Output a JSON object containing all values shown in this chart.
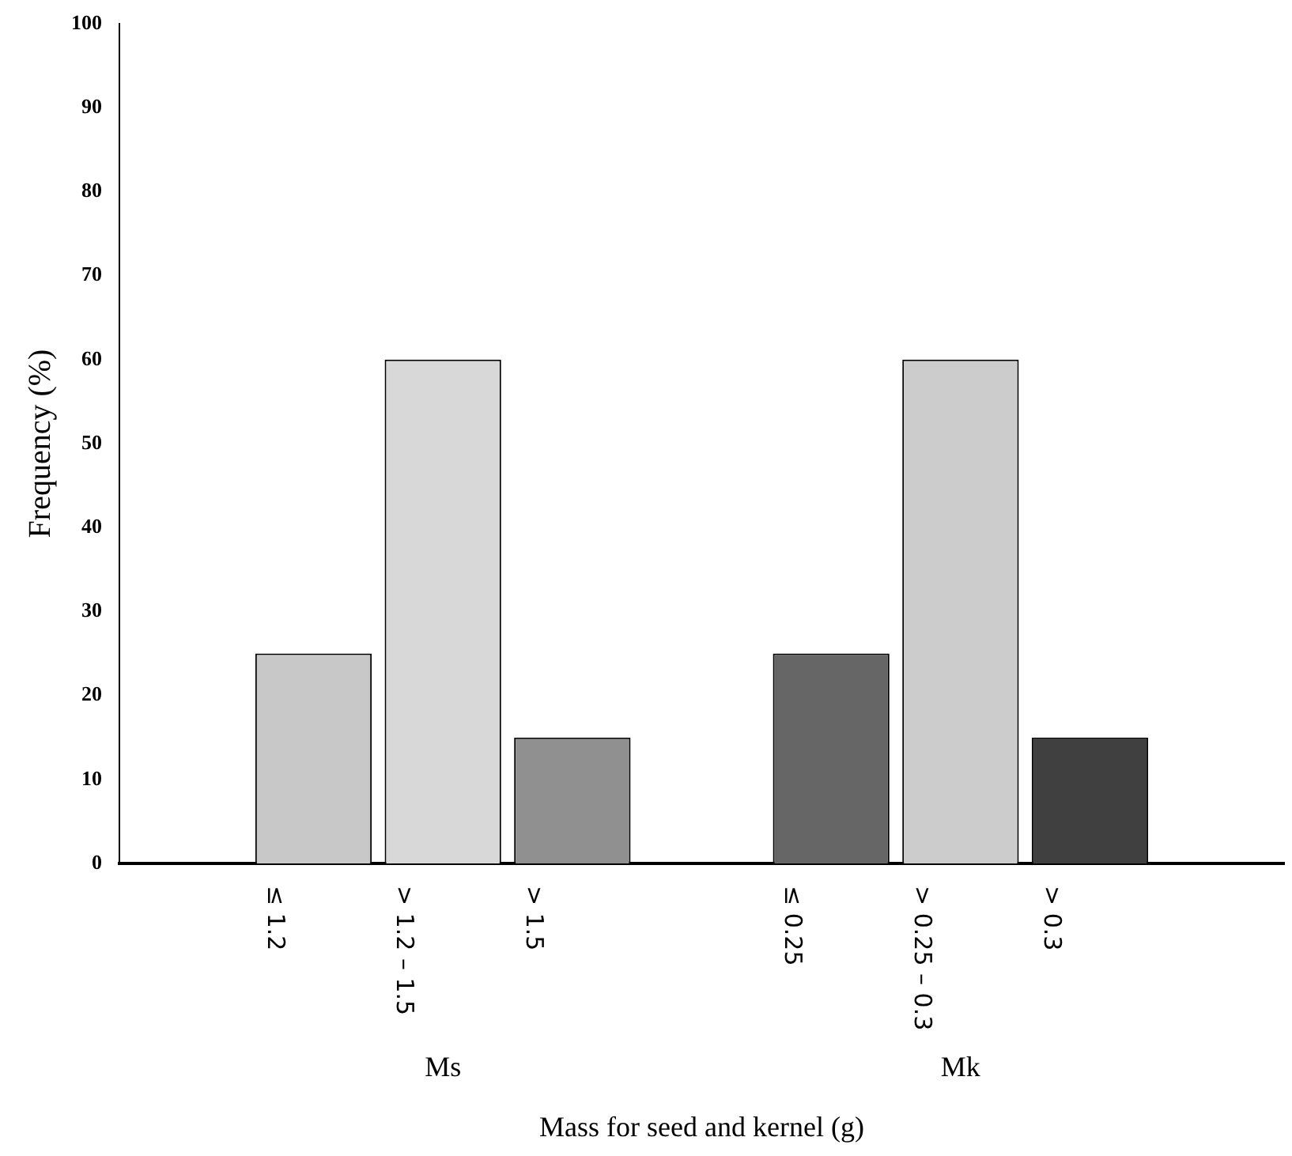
{
  "chart_data": {
    "type": "bar",
    "xlabel": "Mass for seed and kernel (g)",
    "ylabel": "Frequency (%)",
    "categories": [
      null,
      "≤ 1.2",
      "> 1.2 – 1.5",
      "> 1.5",
      null,
      "≤ 0.25",
      "> 0.25 – 0.3",
      "> 0.3",
      null
    ],
    "values": [
      null,
      25,
      60,
      15,
      null,
      25,
      60,
      15,
      null
    ],
    "colors": [
      "#ffffff",
      "#c8c8c8",
      "#d8d8d8",
      "#909090",
      "#ffffff",
      "#666666",
      "#cccccc",
      "#404040",
      "#ffffff"
    ],
    "ylim": [
      0,
      100
    ],
    "yticks": [
      0,
      10,
      20,
      30,
      40,
      50,
      60,
      70,
      80,
      90,
      100
    ],
    "grid": false,
    "legend": false,
    "annotations": [
      "Ms",
      "Mk"
    ]
  }
}
